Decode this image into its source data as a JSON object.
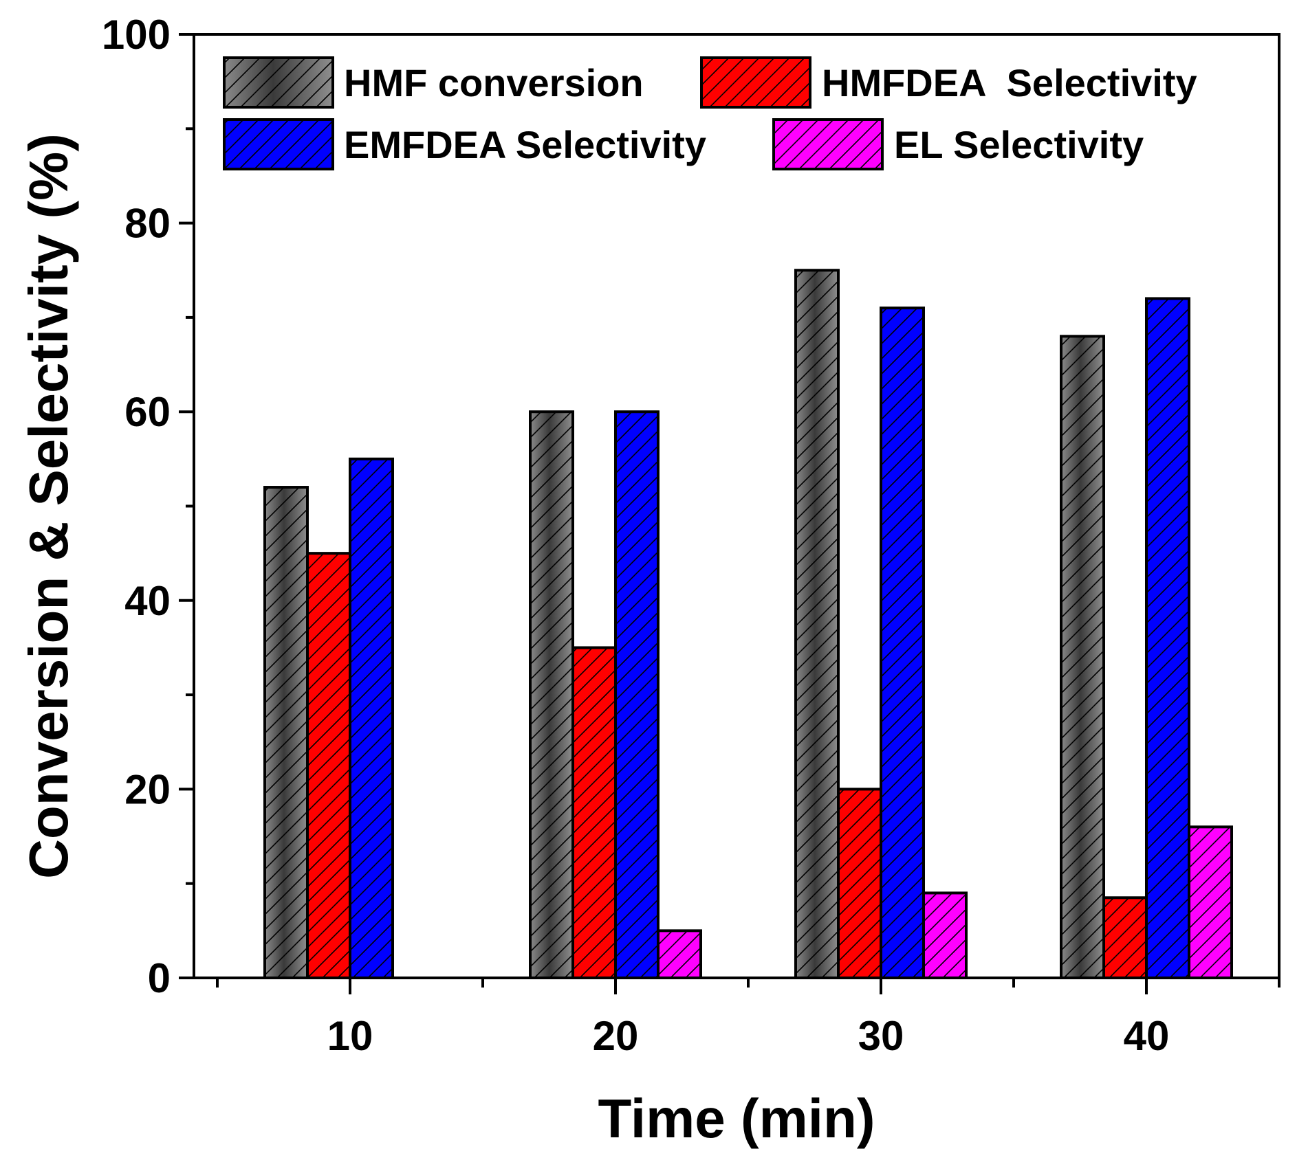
{
  "chart_data": {
    "type": "bar",
    "title": "",
    "xlabel": "Time (min)",
    "ylabel": "Conversion & Selectivity (%)",
    "categories": [
      "10",
      "20",
      "30",
      "40"
    ],
    "ylim": [
      0,
      100
    ],
    "yticks": [
      "0",
      "20",
      "40",
      "60",
      "80",
      "100"
    ],
    "grid": false,
    "legend_position": "top-left",
    "series": [
      {
        "name": "HMF conversion",
        "color": "#777777",
        "pattern": "gray-gradient",
        "values": [
          52,
          60,
          75,
          68
        ]
      },
      {
        "name": "HMFDEA  Selectivity",
        "color": "#ff0000",
        "pattern": "red",
        "values": [
          45,
          35,
          20,
          8.5
        ]
      },
      {
        "name": "EMFDEA Selectivity",
        "color": "#0000ff",
        "pattern": "blue",
        "values": [
          55,
          60,
          71,
          72
        ]
      },
      {
        "name": "EL Selectivity",
        "color": "#ff00ff",
        "pattern": "magenta",
        "values": [
          0,
          5,
          9,
          16
        ]
      }
    ]
  }
}
